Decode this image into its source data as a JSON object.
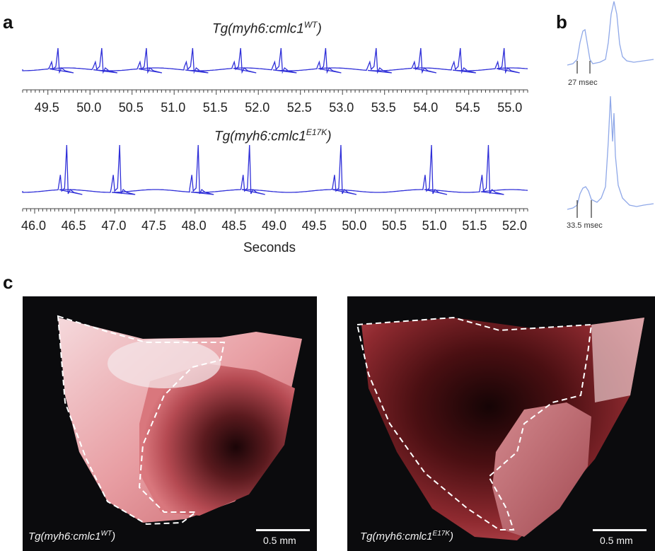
{
  "panels": {
    "a": {
      "letter": "a",
      "trace_wt": {
        "title_prefix": "Tg(myh6:cmlc1",
        "title_sup": "WT",
        "title_suffix": ")",
        "tick_labels": [
          "49.5",
          "50.0",
          "50.5",
          "51.0",
          "51.5",
          "52.0",
          "52.5",
          "53.0",
          "53.5",
          "54.0",
          "54.5",
          "55.0"
        ],
        "spike_times": [
          49.62,
          50.14,
          50.67,
          51.22,
          51.79,
          52.27,
          52.8,
          53.4,
          53.93,
          54.4,
          54.92
        ],
        "color": "#2f2fd8"
      },
      "trace_e17k": {
        "title_prefix": "Tg(myh6:cmlc1",
        "title_sup": "E17K",
        "title_suffix": ")",
        "tick_labels": [
          "46.0",
          "46.5",
          "47.0",
          "47.5",
          "48.0",
          "48.5",
          "49.0",
          "49.5",
          "50.0",
          "50.5",
          "51.0",
          "51.5",
          "52.0"
        ],
        "spike_times": [
          46.4,
          47.06,
          48.04,
          48.68,
          49.82,
          50.95,
          51.66
        ],
        "color": "#2f2fd8"
      },
      "xlabel": "Seconds"
    },
    "b": {
      "letter": "b",
      "interval_wt": "27 msec",
      "interval_e17k": "33.5 msec",
      "color": "#8fa8e8"
    },
    "c": {
      "letter": "c",
      "left_caption_prefix": "Tg(myh6:cmlc1",
      "left_caption_sup": "WT",
      "left_caption_suffix": ")",
      "right_caption_prefix": "Tg(myh6:cmlc1",
      "right_caption_sup": "E17K",
      "right_caption_suffix": ")",
      "scale_label": "0.5 mm"
    }
  }
}
